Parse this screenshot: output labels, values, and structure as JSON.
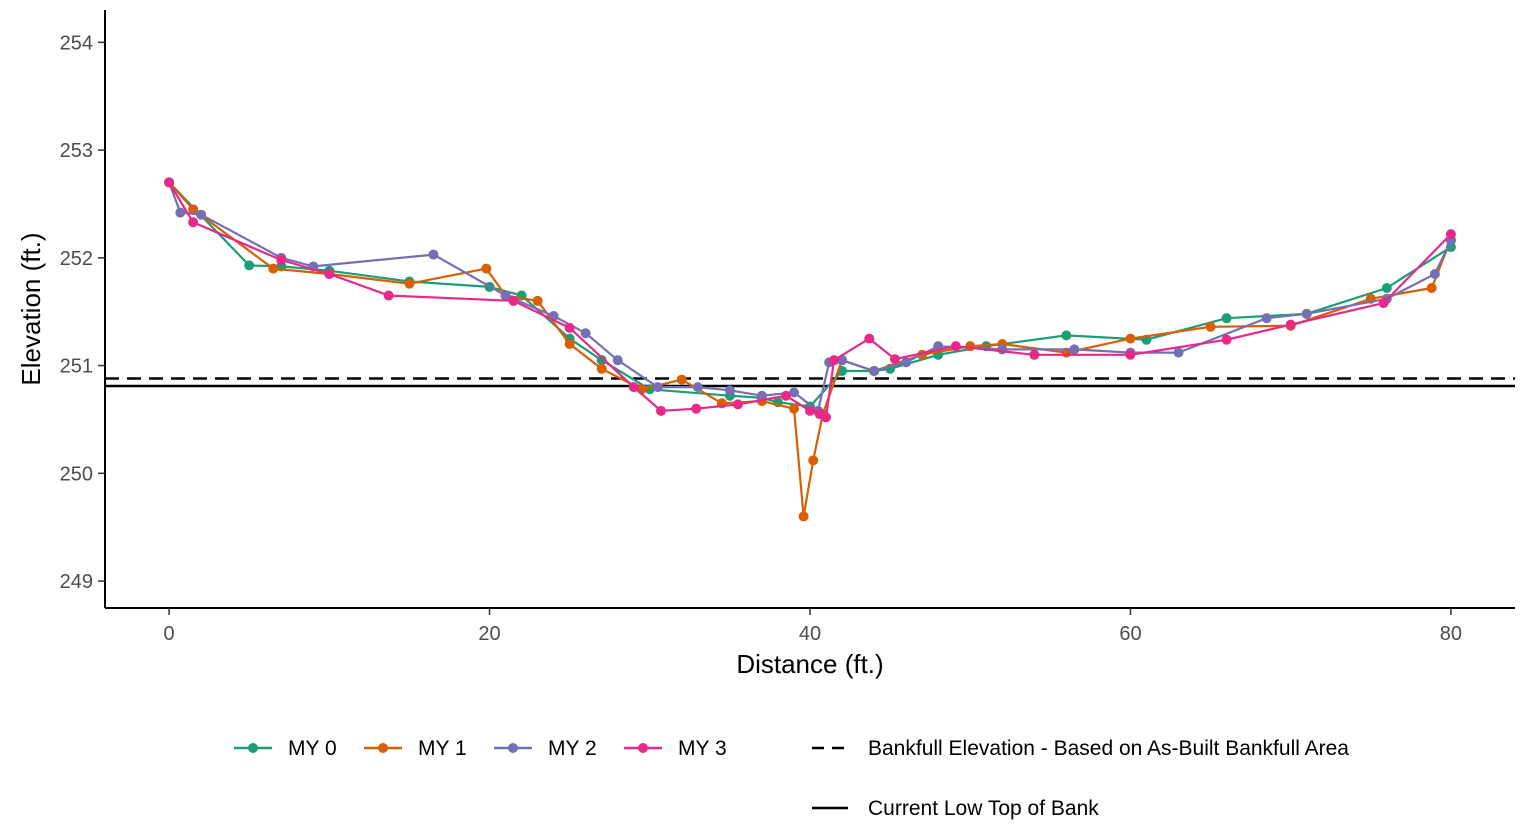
{
  "chart_data": {
    "type": "line",
    "xlabel": "Distance (ft.)",
    "ylabel": "Elevation (ft.)",
    "xlim": [
      -4,
      84
    ],
    "ylim": [
      248.75,
      254.3
    ],
    "x_ticks": [
      0,
      20,
      40,
      60,
      80
    ],
    "y_ticks": [
      249,
      250,
      251,
      252,
      253,
      254
    ],
    "grid": false,
    "legend_position": "bottom",
    "series": [
      {
        "name": "MY 0",
        "color": "#1b9e77",
        "x": [
          0,
          5,
          7,
          10,
          15,
          20,
          22,
          25,
          27,
          30,
          35,
          37,
          38,
          40,
          42,
          44,
          45,
          48,
          51,
          56,
          61,
          66,
          71,
          76,
          80
        ],
        "y": [
          252.7,
          251.93,
          251.92,
          251.88,
          251.78,
          251.73,
          251.65,
          251.25,
          251.05,
          250.78,
          250.72,
          250.7,
          250.66,
          250.62,
          250.95,
          250.95,
          250.97,
          251.1,
          251.18,
          251.28,
          251.24,
          251.44,
          251.48,
          251.72,
          252.1
        ]
      },
      {
        "name": "MY 1",
        "color": "#d95f02",
        "x": [
          0,
          1.5,
          6.5,
          10,
          15,
          19.8,
          21,
          23,
          25,
          27,
          29.5,
          32,
          34.5,
          37,
          39,
          39.6,
          40.2,
          40.8,
          42,
          44,
          47,
          50,
          52,
          56,
          60,
          65,
          70,
          75,
          78.8,
          80
        ],
        "y": [
          252.7,
          252.45,
          251.9,
          251.85,
          251.76,
          251.9,
          251.65,
          251.6,
          251.2,
          250.97,
          250.78,
          250.87,
          250.65,
          250.67,
          250.6,
          249.6,
          250.12,
          250.55,
          251.05,
          250.95,
          251.1,
          251.18,
          251.2,
          251.12,
          251.25,
          251.36,
          251.37,
          251.62,
          251.72,
          252.17
        ]
      },
      {
        "name": "MY 2",
        "color": "#7570b3",
        "x": [
          0,
          0.7,
          2,
          7,
          9,
          16.5,
          21,
          24,
          26,
          28,
          30.5,
          33,
          35,
          37,
          39,
          40.5,
          41.2,
          42,
          44,
          46,
          48,
          52,
          56.5,
          60,
          63,
          68.5,
          71,
          76,
          79,
          80
        ],
        "y": [
          252.7,
          252.42,
          252.4,
          252.0,
          251.92,
          252.03,
          251.65,
          251.46,
          251.3,
          251.05,
          250.8,
          250.8,
          250.77,
          250.72,
          250.75,
          250.58,
          251.03,
          251.05,
          250.95,
          251.03,
          251.18,
          251.15,
          251.15,
          251.12,
          251.12,
          251.44,
          251.48,
          251.62,
          251.85,
          252.16
        ]
      },
      {
        "name": "MY 3",
        "color": "#e7298a",
        "x": [
          0,
          1.5,
          7,
          10,
          13.7,
          21.5,
          25,
          29,
          30.7,
          32.9,
          35.5,
          38.5,
          40,
          40.6,
          41,
          41.5,
          43.7,
          45.3,
          49.1,
          54,
          60,
          66,
          70,
          75.8,
          80
        ],
        "y": [
          252.7,
          252.33,
          251.98,
          251.85,
          251.65,
          251.6,
          251.35,
          250.8,
          250.58,
          250.6,
          250.64,
          250.72,
          250.58,
          250.55,
          250.52,
          251.05,
          251.25,
          251.06,
          251.18,
          251.1,
          251.1,
          251.24,
          251.38,
          251.58,
          252.22
        ]
      }
    ],
    "reference_lines": [
      {
        "name": "Bankfull Elevation - Based on As-Built Bankfull Area",
        "y": 250.88,
        "style": "dashed",
        "color": "#000000"
      },
      {
        "name": "Current Low Top of Bank",
        "y": 250.81,
        "style": "solid",
        "color": "#000000"
      }
    ]
  }
}
